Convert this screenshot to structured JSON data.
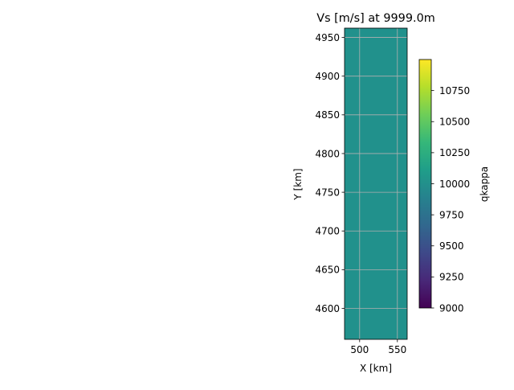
{
  "chart_data": {
    "type": "heatmap",
    "title": "Vs [m/s] at 9999.0m",
    "xlabel": "X [km]",
    "ylabel": "Y [km]",
    "xlim": [
      480,
      563
    ],
    "ylim": [
      4560,
      4962
    ],
    "x_ticks": [
      500,
      550
    ],
    "y_ticks": [
      4600,
      4650,
      4700,
      4750,
      4800,
      4850,
      4900,
      4950
    ],
    "grid": true,
    "field_value": 10000,
    "field_color": "#21918c",
    "colorbar": {
      "label": "qkappa",
      "vmin": 9000,
      "vmax": 11000,
      "ticks": [
        9000,
        9250,
        9500,
        9750,
        10000,
        10250,
        10500,
        10750
      ],
      "colormap": "viridis",
      "colors": [
        "#440154",
        "#482878",
        "#3e4989",
        "#31688e",
        "#26828e",
        "#1f9e89",
        "#35b779",
        "#6ece58",
        "#b5de2b",
        "#fde725"
      ]
    }
  }
}
